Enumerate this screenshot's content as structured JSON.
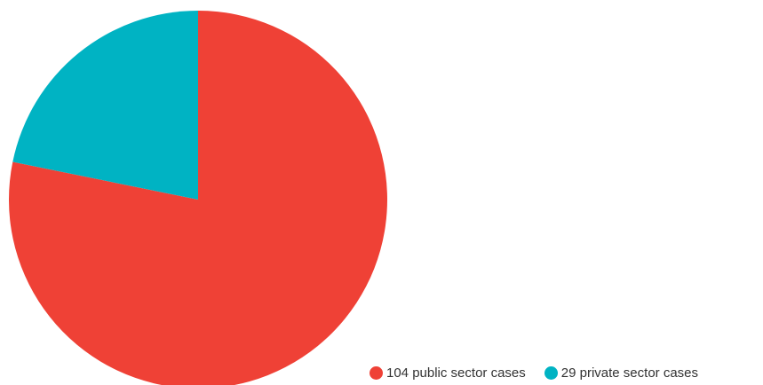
{
  "chart_data": {
    "type": "pie",
    "slices": [
      {
        "label": "104 public sector cases",
        "value": 104,
        "color": "#ef4136"
      },
      {
        "label": "29 private sector cases",
        "value": 29,
        "color": "#00b3c3"
      }
    ],
    "legend_position": "bottom-right"
  }
}
